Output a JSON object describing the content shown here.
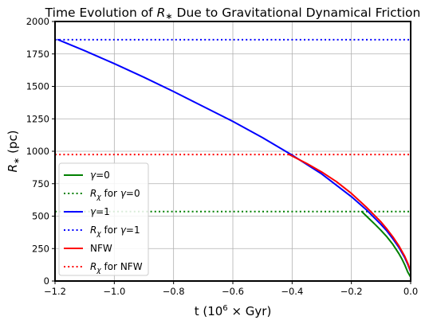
{
  "chart_data": {
    "type": "line",
    "title": "Time Evolution of R* Due to Gravitational Dynamical Friction",
    "xlabel": "t (10^6 × Gyr)",
    "ylabel": "R* (pc)",
    "xlim": [
      -1.2,
      0.0
    ],
    "ylim": [
      0,
      2000
    ],
    "xticks": [
      -1.2,
      -1.0,
      -0.8,
      -0.6,
      -0.4,
      -0.2,
      0.0
    ],
    "xtick_labels": [
      "−1.2",
      "−1.0",
      "−0.8",
      "−0.6",
      "−0.4",
      "−0.2",
      "0.0"
    ],
    "yticks": [
      0,
      250,
      500,
      750,
      1000,
      1250,
      1500,
      1750,
      2000
    ],
    "ytick_labels": [
      "0",
      "250",
      "500",
      "750",
      "1000",
      "1250",
      "1500",
      "1750",
      "2000"
    ],
    "grid": true,
    "legend_position": "lower-left",
    "series": [
      {
        "name": "γ = 0",
        "style": "solid",
        "color": "#008000",
        "x": [
          -0.165,
          -0.14,
          -0.12,
          -0.1,
          -0.08,
          -0.06,
          -0.04,
          -0.03,
          -0.02,
          -0.01,
          0.0
        ],
        "y": [
          535,
          480,
          436,
          390,
          340,
          282,
          212,
          172,
          125,
          70,
          30
        ]
      },
      {
        "name": "R_χ for γ = 0",
        "style": "dotted",
        "color": "#008000",
        "x": [
          -1.2,
          0.0
        ],
        "y": [
          535,
          535
        ]
      },
      {
        "name": "γ = 1",
        "style": "solid",
        "color": "#0000ff",
        "x": [
          -1.19,
          -1.1,
          -1.0,
          -0.9,
          -0.8,
          -0.7,
          -0.6,
          -0.5,
          -0.4,
          -0.3,
          -0.2,
          -0.15,
          -0.1,
          -0.08,
          -0.06,
          -0.04,
          -0.02,
          -0.01,
          0.0
        ],
        "y": [
          1860,
          1775,
          1675,
          1570,
          1460,
          1345,
          1230,
          1105,
          970,
          825,
          650,
          550,
          435,
          385,
          325,
          260,
          180,
          130,
          70
        ]
      },
      {
        "name": "R_χ for γ = 1",
        "style": "dotted",
        "color": "#0000ff",
        "x": [
          -1.2,
          0.0
        ],
        "y": [
          1860,
          1860
        ]
      },
      {
        "name": "NFW",
        "style": "solid",
        "color": "#ff0000",
        "x": [
          -0.41,
          -0.35,
          -0.3,
          -0.25,
          -0.2,
          -0.15,
          -0.1,
          -0.08,
          -0.06,
          -0.04,
          -0.02,
          -0.01,
          0.0
        ],
        "y": [
          975,
          905,
          840,
          765,
          675,
          570,
          455,
          400,
          340,
          272,
          190,
          138,
          75
        ]
      },
      {
        "name": "R_χ for NFW",
        "style": "dotted",
        "color": "#ff0000",
        "x": [
          -1.2,
          0.0
        ],
        "y": [
          975,
          975
        ]
      }
    ]
  }
}
